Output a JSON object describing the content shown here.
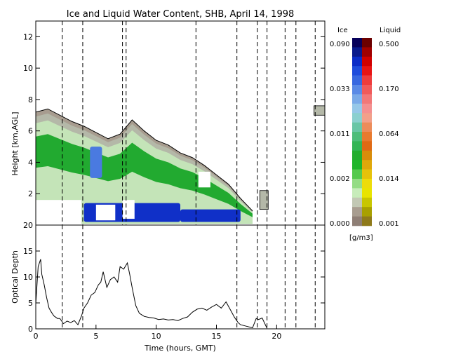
{
  "chart_data": [
    {
      "type": "heatmap",
      "title": "Ice and Liquid Water Content, SHB, April 14, 1998",
      "xlabel": "",
      "ylabel": "Height [km,AGL]",
      "xlim": [
        0,
        24
      ],
      "ylim": [
        0,
        13
      ],
      "x_ticks": [
        "0",
        "5",
        "10",
        "15",
        "20"
      ],
      "y_ticks": [
        "2",
        "4",
        "6",
        "8",
        "10",
        "12"
      ],
      "vertical_dashed_lines": [
        2.2,
        3.9,
        7.2,
        7.5,
        13.3,
        16.7,
        18.4,
        19.2,
        20.7,
        21.6,
        23.2
      ],
      "cloud_ice_base_km": 0.1,
      "cloud_top_profile": [
        [
          0,
          7.2
        ],
        [
          1,
          7.4
        ],
        [
          2,
          7.0
        ],
        [
          3,
          6.6
        ],
        [
          4,
          6.3
        ],
        [
          5,
          5.9
        ],
        [
          6,
          5.5
        ],
        [
          7,
          5.8
        ],
        [
          8,
          6.7
        ],
        [
          9,
          6.0
        ],
        [
          10,
          5.4
        ],
        [
          11,
          5.1
        ],
        [
          12,
          4.6
        ],
        [
          13,
          4.3
        ],
        [
          14,
          3.8
        ],
        [
          15,
          3.2
        ],
        [
          16,
          2.6
        ],
        [
          17,
          1.7
        ],
        [
          18,
          0.9
        ]
      ],
      "clear_patches": [
        {
          "x": [
            0,
            3.8
          ],
          "y": [
            0,
            1.6
          ]
        },
        {
          "x": [
            5.0,
            6.6
          ],
          "y": [
            0.3,
            1.3
          ]
        },
        {
          "x": [
            7.2,
            8.2
          ],
          "y": [
            0.4,
            1.6
          ]
        },
        {
          "x": [
            13.5,
            14.5
          ],
          "y": [
            2.4,
            3.4
          ]
        }
      ],
      "ice_core": [
        {
          "x": [
            4.0,
            12.0
          ],
          "y": [
            0.2,
            1.4
          ],
          "level": "high"
        },
        {
          "x": [
            12.0,
            17.0
          ],
          "y": [
            0.2,
            1.0
          ],
          "level": "high"
        },
        {
          "x": [
            4.5,
            5.5
          ],
          "y": [
            3.0,
            5.0
          ],
          "level": "medium"
        }
      ],
      "isolated_cells": [
        {
          "x": [
            18.6,
            19.3
          ],
          "y": [
            1.0,
            2.2
          ]
        },
        {
          "x": [
            23.1,
            24.0
          ],
          "y": [
            7.0,
            7.6
          ]
        }
      ]
    },
    {
      "type": "line",
      "xlabel": "Time (hours, GMT)",
      "ylabel": "Optical Depth",
      "xlim": [
        0,
        24
      ],
      "ylim": [
        0,
        20
      ],
      "x_ticks": [
        "0",
        "5",
        "10",
        "15",
        "20"
      ],
      "y_ticks": [
        "0",
        "5",
        "10",
        "15",
        "20"
      ],
      "x": [
        0.0,
        0.2,
        0.4,
        0.5,
        0.7,
        0.9,
        1.1,
        1.3,
        1.5,
        1.8,
        2.0,
        2.3,
        2.6,
        2.9,
        3.2,
        3.5,
        3.8,
        4.0,
        4.3,
        4.6,
        4.9,
        5.2,
        5.4,
        5.6,
        5.9,
        6.2,
        6.5,
        6.8,
        7.0,
        7.3,
        7.6,
        7.8,
        8.0,
        8.3,
        8.6,
        9.0,
        9.4,
        9.8,
        10.2,
        10.6,
        11.0,
        11.4,
        11.8,
        12.2,
        12.6,
        13.0,
        13.4,
        13.8,
        14.2,
        14.6,
        15.0,
        15.4,
        15.8,
        16.2,
        16.5,
        16.8,
        17.0,
        17.5,
        18.0,
        18.3,
        18.5,
        18.8,
        19.2
      ],
      "values": [
        4.8,
        12.0,
        13.4,
        10.5,
        8.5,
        6.0,
        4.0,
        3.2,
        2.5,
        2.0,
        2.0,
        1.0,
        1.5,
        1.2,
        1.6,
        0.8,
        2.5,
        4.0,
        5.0,
        6.5,
        7.0,
        8.5,
        9.0,
        11.0,
        8.0,
        9.5,
        10.0,
        9.0,
        12.0,
        11.5,
        12.7,
        10.5,
        8.0,
        4.5,
        3.0,
        2.4,
        2.2,
        2.1,
        1.8,
        1.9,
        1.7,
        1.8,
        1.6,
        2.0,
        2.3,
        3.2,
        3.8,
        4.0,
        3.6,
        4.2,
        4.7,
        4.0,
        5.2,
        3.5,
        2.2,
        1.2,
        0.8,
        0.5,
        0.2,
        2.0,
        1.8,
        2.1,
        0.1
      ],
      "vertical_dashed_lines": [
        2.2,
        3.9,
        16.7,
        18.4,
        19.2,
        20.7,
        21.6,
        23.2
      ]
    }
  ],
  "colorbar": {
    "left_header": "Ice",
    "right_header": "Liquid",
    "unit": "[g/m3]",
    "ice_labels": [
      "0.090",
      "0.033",
      "0.011",
      "0.002",
      "0.000"
    ],
    "liquid_labels": [
      "0.500",
      "0.170",
      "0.064",
      "0.014",
      "0.001"
    ],
    "ice_colors": [
      "#07005a",
      "#0a1a8c",
      "#0b2cc7",
      "#1e4cdc",
      "#3868e0",
      "#5a8ae6",
      "#7aaae8",
      "#96c8e8",
      "#8bd0cf",
      "#69c6a6",
      "#4dbd7a",
      "#33b556",
      "#22ad2e",
      "#1fb52a",
      "#55c94c",
      "#94dc84",
      "#c7ecba",
      "#c2c8b4",
      "#a89d90",
      "#8f7f76"
    ],
    "liquid_colors": [
      "#6b0000",
      "#a10000",
      "#d10000",
      "#e81414",
      "#ee3c3c",
      "#f05a5a",
      "#f27878",
      "#f49090",
      "#f2a08a",
      "#ec8c5a",
      "#e87a2e",
      "#e06a14",
      "#d88c0a",
      "#e0a80a",
      "#e6c20a",
      "#eddc0a",
      "#e8e400",
      "#c8c600",
      "#a8a000",
      "#8f7a1a"
    ]
  },
  "colors": {
    "ice_high": "#1030c8",
    "ice_mid": "#22aa30",
    "ice_low": "#c4e4b8",
    "ice_faint": "#b4b8a8",
    "ice_trace": "#a79c8f",
    "optical_line": "#000000"
  }
}
